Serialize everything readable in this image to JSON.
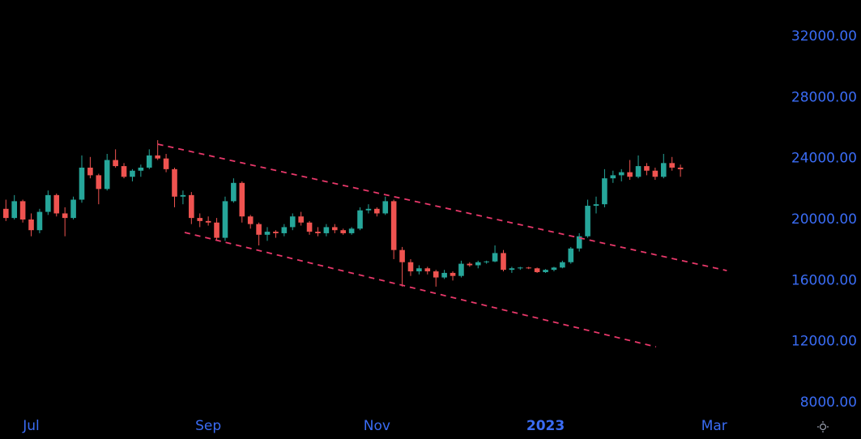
{
  "chart_data": {
    "type": "candlestick",
    "categories": [
      null,
      null,
      null,
      "Jul",
      null,
      null,
      null,
      null,
      null,
      null,
      null,
      null,
      null,
      null,
      null,
      null,
      null,
      null,
      null,
      null,
      null,
      null,
      null,
      null,
      "Sep",
      null,
      null,
      null,
      null,
      null,
      null,
      null,
      null,
      null,
      null,
      null,
      null,
      null,
      null,
      null,
      null,
      null,
      null,
      null,
      "Nov",
      null,
      null,
      null,
      null,
      null,
      null,
      null,
      null,
      null,
      null,
      null,
      null,
      null,
      null,
      null,
      null,
      null,
      null,
      null,
      "2023",
      null,
      null,
      null,
      null,
      null,
      null,
      null,
      null,
      null,
      null,
      null,
      null,
      null,
      null,
      null,
      null,
      null,
      null,
      null,
      "Mar",
      null,
      null,
      null,
      null,
      null,
      null
    ],
    "open": [
      20700,
      20100,
      21200,
      20000,
      19300,
      20500,
      21600,
      20400,
      20100,
      21300,
      23400,
      22900,
      22000,
      23900,
      23500,
      22800,
      23200,
      23400,
      24200,
      24000,
      23300,
      21500,
      21600,
      20100,
      19900,
      19800,
      18800,
      21200,
      22400,
      20200,
      19700,
      19000,
      19200,
      19100,
      19500,
      20200,
      19800,
      19200,
      19100,
      19500,
      19300,
      19100,
      19400,
      20600,
      20700,
      20400,
      21200,
      18000,
      17200,
      16600,
      16800,
      16600,
      16200,
      16500,
      16300,
      17100,
      17000,
      17200,
      17250,
      17800,
      16700,
      16800,
      16850,
      16800,
      16550,
      16700,
      16850,
      17200,
      18100,
      18900,
      20900,
      21000,
      22700,
      22900,
      23100,
      22800,
      23500,
      23200,
      22800,
      23700,
      23400,
      null,
      null,
      null,
      null,
      null,
      null,
      null,
      null,
      null,
      null
    ],
    "high": [
      21300,
      21600,
      21300,
      20400,
      20700,
      21900,
      21700,
      20800,
      21500,
      24200,
      24100,
      23000,
      24300,
      24600,
      23700,
      23300,
      23600,
      24600,
      25200,
      24300,
      23400,
      21900,
      21800,
      20400,
      20200,
      20100,
      21500,
      22700,
      22500,
      20300,
      19800,
      19500,
      19300,
      19700,
      20400,
      20500,
      19900,
      19500,
      19700,
      19700,
      19400,
      19500,
      20800,
      21000,
      20800,
      21500,
      21300,
      18200,
      17400,
      17000,
      16900,
      16700,
      16700,
      16600,
      17300,
      17200,
      17300,
      17300,
      18300,
      18000,
      16900,
      16900,
      16900,
      16850,
      16750,
      16900,
      17300,
      18200,
      19100,
      21300,
      21500,
      23300,
      23200,
      23300,
      23900,
      24200,
      23700,
      23400,
      24300,
      24100,
      23600,
      null,
      null,
      null,
      null,
      null,
      null,
      null,
      null,
      null,
      null
    ],
    "low": [
      19900,
      20000,
      19800,
      18900,
      19100,
      20300,
      20200,
      18900,
      20000,
      21100,
      22700,
      21000,
      21900,
      23400,
      22700,
      22500,
      22800,
      23300,
      23900,
      23100,
      20800,
      21000,
      19700,
      19500,
      19600,
      18600,
      18600,
      21100,
      19800,
      19400,
      18300,
      18600,
      18800,
      18900,
      19300,
      19600,
      19000,
      18900,
      18900,
      19100,
      19000,
      19000,
      19300,
      20400,
      20200,
      20300,
      17400,
      15600,
      16300,
      16400,
      16400,
      15600,
      16100,
      16000,
      16200,
      16900,
      16800,
      17100,
      17200,
      16600,
      16500,
      16700,
      16750,
      16500,
      16500,
      16600,
      16800,
      17100,
      17900,
      18800,
      20400,
      20800,
      22400,
      22500,
      22600,
      22700,
      22900,
      22600,
      22700,
      23200,
      22800,
      null,
      null,
      null,
      null,
      null,
      null,
      null,
      null,
      null,
      null
    ],
    "close": [
      20100,
      21200,
      20000,
      19300,
      20500,
      21600,
      20400,
      20100,
      21300,
      23400,
      22900,
      22000,
      23900,
      23500,
      22800,
      23200,
      23400,
      24200,
      24000,
      23300,
      21500,
      21600,
      20100,
      19900,
      19800,
      18800,
      21200,
      22400,
      20200,
      19700,
      19000,
      19200,
      19100,
      19500,
      20200,
      19800,
      19200,
      19100,
      19500,
      19300,
      19100,
      19400,
      20600,
      20700,
      20400,
      21200,
      18000,
      17200,
      16600,
      16800,
      16600,
      16200,
      16500,
      16300,
      17100,
      17000,
      17200,
      17250,
      17800,
      16700,
      16800,
      16850,
      16800,
      16550,
      16700,
      16850,
      17200,
      18100,
      18900,
      20900,
      21000,
      22700,
      22900,
      23100,
      22800,
      23500,
      23200,
      22800,
      23700,
      23400,
      23300,
      null,
      null,
      null,
      null,
      null,
      null,
      null,
      null,
      null,
      null
    ],
    "up_color": "#26a69a",
    "down_color": "#ef5350",
    "ylim": [
      5610,
      34390
    ],
    "yticks": [
      {
        "value": 8000,
        "label": "8000.00"
      },
      {
        "value": 12000,
        "label": "12000.00"
      },
      {
        "value": 16000,
        "label": "16000.00"
      },
      {
        "value": 20000,
        "label": "20000.00"
      },
      {
        "value": 24000,
        "label": "24000.00"
      },
      {
        "value": 28000,
        "label": "28000.00"
      },
      {
        "value": 32000,
        "label": "32000.00"
      }
    ],
    "channel_color": "#e8386a",
    "channel_lines": [
      {
        "start": {
          "category_index": 18,
          "value": 24940
        },
        "end": {
          "category_index": 85.5,
          "value": 16650
        }
      },
      {
        "start": {
          "category_index": 21.2,
          "value": 19150
        },
        "end": {
          "category_index": 77.1,
          "value": 11650
        }
      }
    ]
  }
}
